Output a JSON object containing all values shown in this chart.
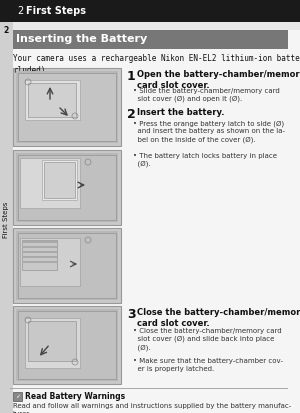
{
  "page_bg": "#e8e8e8",
  "header_bg": "#1a1a1a",
  "header_text_plain": "2 ",
  "header_text_bold": "First Steps",
  "header_text_color": "#ffffff",
  "section_bg": "#777777",
  "section_text": "Inserting the Battery",
  "section_text_color": "#ffffff",
  "intro_text": "Your camera uses a rechargeable Nikon EN-EL2 lithium-ion battery (in-\ncluded).",
  "step1_num": "1",
  "step1_title": "Open the battery-chamber/memory\ncard slot cover.",
  "step1_bullet1": "• Slide the battery-chamber/memory card\n  slot cover (Ø) and open it (Ø).",
  "step2_num": "2",
  "step2_title": "Insert the battery.",
  "step2_bullet1": "• Press the orange battery latch to side (Ø)\n  and insert the battery as shown on the la-\n  bel on the inside of the cover (Ø).",
  "step2_bullet2": "• The battery latch locks battery in place\n  (Ø).",
  "step3_num": "3",
  "step3_title": "Close the battery-chamber/memory\ncard slot cover.",
  "step3_bullet1": "• Close the battery-chamber/memory card\n  slot cover (Ø) and slide back into place\n  (Ø).",
  "step3_bullet2": "• Make sure that the battery-chamber cov-\n  er is properly latched.",
  "warning_icon": "✓",
  "warning_title": "Read Battery Warnings",
  "warning_text": "Read and follow all warnings and instructions supplied by the battery manufac-\nturer.",
  "sidebar_num": "2",
  "sidebar_text": "First Steps",
  "body_bg": "#f5f5f5",
  "img_bg": "#c8c8c8",
  "img_border": "#999999",
  "sidebar_bg": "#d0d0d0",
  "text_dark": "#111111",
  "text_body": "#333333",
  "warning_line_color": "#aaaaaa"
}
